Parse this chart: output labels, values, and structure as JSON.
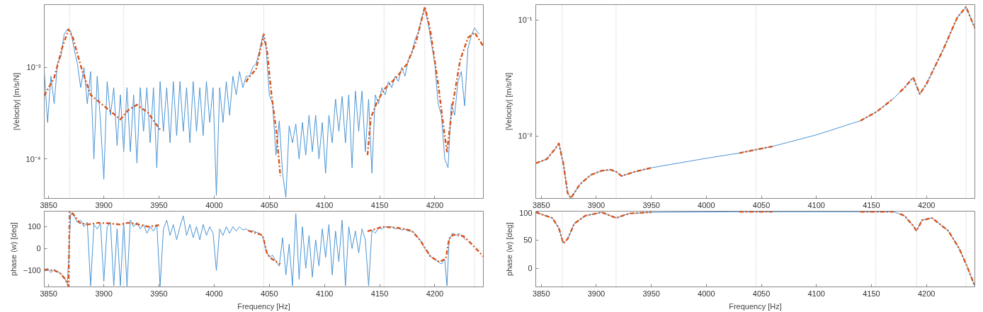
{
  "chart_data": [
    {
      "type": "line",
      "ylabel": "|Velocity| [m/s/N]",
      "log": "y",
      "grid": false,
      "xlim": [
        3846,
        4244
      ],
      "ylim": [
        3.7e-05,
        0.00484
      ],
      "xticks": [
        3850,
        3900,
        3950,
        4000,
        4050,
        4100,
        4150,
        4200
      ],
      "yticks": [
        {
          "value": 0.0001,
          "label": "10⁻⁴"
        },
        {
          "value": 0.001,
          "label": "10⁻³"
        }
      ],
      "ref_lines": [
        {
          "axis": "x",
          "value": 3869,
          "color": "#b4b4b4",
          "line_style": "dotted"
        },
        {
          "axis": "x",
          "value": 3918,
          "color": "#b4b4b4",
          "line_style": "dotted"
        },
        {
          "axis": "x",
          "value": 4045,
          "color": "#b4b4b4",
          "line_style": "dotted"
        },
        {
          "axis": "x",
          "value": 4154,
          "color": "#b4b4b4",
          "line_style": "dotted"
        },
        {
          "axis": "x",
          "value": 4191,
          "color": "#b4b4b4",
          "line_style": "dotted"
        },
        {
          "axis": "x",
          "value": 4236,
          "color": "#b4b4b4",
          "line_style": "dotted"
        }
      ],
      "series": [
        {
          "color": "#4a94d4",
          "line_style": "solid",
          "x": [
            3846,
            3849,
            3852,
            3855,
            3858,
            3861,
            3864,
            3867,
            3870,
            3873,
            3876,
            3879,
            3882,
            3885,
            3888,
            3891,
            3894,
            3897,
            3900,
            3903,
            3906,
            3909,
            3912,
            3915,
            3918,
            3921,
            3924,
            3927,
            3930,
            3933,
            3936,
            3939,
            3942,
            3945,
            3948,
            3951,
            3954,
            3957,
            3960,
            3963,
            3966,
            3969,
            3972,
            3975,
            3978,
            3981,
            3984,
            3987,
            3990,
            3993,
            3996,
            3999,
            4002,
            4005,
            4008,
            4011,
            4014,
            4017,
            4020,
            4023,
            4026,
            4029,
            4032,
            4035,
            4038,
            4041,
            4044,
            4047,
            4050,
            4053,
            4056,
            4059,
            4062,
            4065,
            4068,
            4071,
            4074,
            4077,
            4080,
            4083,
            4086,
            4089,
            4092,
            4095,
            4098,
            4101,
            4104,
            4107,
            4110,
            4113,
            4116,
            4119,
            4122,
            4125,
            4128,
            4131,
            4134,
            4137,
            4140,
            4143,
            4146,
            4149,
            4152,
            4155,
            4158,
            4161,
            4164,
            4167,
            4170,
            4173,
            4176,
            4179,
            4182,
            4185,
            4188,
            4191,
            4194,
            4197,
            4200,
            4203,
            4206,
            4209,
            4212,
            4215,
            4218,
            4221,
            4224,
            4227,
            4230,
            4233,
            4236,
            4240
          ],
          "values": [
            0.0009,
            0.00025,
            0.0008,
            0.0004,
            0.0011,
            0.0013,
            0.0023,
            0.0026,
            0.0025,
            0.0016,
            0.0011,
            0.0006,
            0.001,
            0.0004,
            0.0009,
            0.0001,
            0.0008,
            0.00025,
            6e-05,
            0.0007,
            0.0003,
            0.0006,
            0.00014,
            0.0005,
            0.00012,
            0.0006,
            0.00012,
            0.0005,
            9e-05,
            0.0006,
            0.0002,
            0.0006,
            0.00015,
            0.0006,
            8e-05,
            0.0007,
            0.0002,
            0.0006,
            0.00015,
            0.0007,
            0.00018,
            0.0007,
            0.0002,
            0.0006,
            0.00015,
            0.0007,
            0.0002,
            0.0006,
            0.00018,
            0.0007,
            0.00025,
            0.0006,
            4e-05,
            0.0006,
            0.00025,
            0.0007,
            0.0003,
            0.0008,
            0.0005,
            0.0009,
            0.0006,
            0.0008,
            0.0008,
            0.001,
            0.0011,
            0.0015,
            0.0022,
            0.0017,
            0.0005,
            0.0004,
            0.00011,
            0.00026,
            7e-05,
            3.8e-05,
            0.00023,
            0.00015,
            0.00024,
            0.0001,
            0.00025,
            0.00011,
            0.0003,
            0.00012,
            0.0003,
            0.0001,
            0.00025,
            7e-05,
            0.0003,
            0.00015,
            0.00045,
            0.0002,
            0.00048,
            0.00015,
            0.0005,
            8e-05,
            0.00055,
            0.0002,
            0.00055,
            0.00012,
            0.00045,
            7e-05,
            0.0005,
            0.0004,
            0.0006,
            0.0005,
            0.0007,
            0.0006,
            0.0008,
            0.0007,
            0.001,
            0.0008,
            0.0012,
            0.0014,
            0.002,
            0.0024,
            0.0034,
            0.0045,
            0.003,
            0.0018,
            0.0011,
            0.0004,
            0.0003,
            0.0001,
            8e-05,
            0.0004,
            0.0003,
            0.0007,
            0.0009,
            0.00038,
            0.0016,
            0.0022,
            0.0027,
            0.0023
          ]
        },
        {
          "color": "#d95319",
          "line_style": "dashed",
          "x": [
            3846,
            3855,
            3862,
            3868,
            3872,
            3880,
            3888,
            3900,
            3915,
            3922,
            3930,
            3940,
            3952,
            3990,
            4029,
            4031,
            4038,
            4045,
            4048,
            4052,
            4056,
            4060,
            4100,
            4139,
            4142,
            4148,
            4155,
            4165,
            4175,
            4183,
            4191,
            4196,
            4203,
            4208,
            4211,
            4216,
            4223,
            4230,
            4236,
            4244
          ],
          "values": [
            0.00049,
            0.00077,
            0.0016,
            0.0026,
            0.0021,
            0.00095,
            0.0005,
            0.00038,
            0.00027,
            0.00034,
            0.00039,
            0.00032,
            0.0002,
            null,
            0.00069,
            0.00077,
            0.00095,
            0.0023,
            0.0015,
            0.0005,
            0.00022,
            6.5e-05,
            null,
            0.00011,
            0.00028,
            0.00043,
            0.00059,
            0.00077,
            0.0011,
            0.0019,
            0.0046,
            0.0025,
            0.00066,
            0.00022,
            0.00012,
            0.00038,
            0.0012,
            0.0021,
            0.0024,
            0.0017
          ]
        }
      ]
    },
    {
      "type": "line",
      "ylabel": "|Velocity| [m/s/N]",
      "log": "y",
      "grid": false,
      "xlim": [
        3845,
        4244
      ],
      "ylim": [
        0.00288,
        0.136
      ],
      "xticks": [
        3850,
        3900,
        3950,
        4000,
        4050,
        4100,
        4150,
        4200
      ],
      "yticks": [
        {
          "value": 0.01,
          "label": "10⁻²"
        },
        {
          "value": 0.1,
          "label": "10⁻¹"
        }
      ],
      "ref_lines": [
        {
          "axis": "x",
          "value": 3869,
          "color": "#b4b4b4",
          "line_style": "dotted"
        },
        {
          "axis": "x",
          "value": 3918,
          "color": "#b4b4b4",
          "line_style": "dotted"
        },
        {
          "axis": "x",
          "value": 4045,
          "color": "#b4b4b4",
          "line_style": "dotted"
        },
        {
          "axis": "x",
          "value": 4154,
          "color": "#b4b4b4",
          "line_style": "dotted"
        },
        {
          "axis": "x",
          "value": 4191,
          "color": "#b4b4b4",
          "line_style": "dotted"
        },
        {
          "axis": "x",
          "value": 4236,
          "color": "#b4b4b4",
          "line_style": "dotted"
        }
      ],
      "series": [
        {
          "color": "#4a94d4",
          "line_style": "solid",
          "x": [
            3845,
            3855,
            3862,
            3866,
            3870,
            3874,
            3877,
            3885,
            3895,
            3905,
            3913,
            3918,
            3923,
            3935,
            3950,
            4000,
            4030,
            4045,
            4060,
            4100,
            4140,
            4155,
            4170,
            4180,
            4188,
            4191,
            4194,
            4200,
            4215,
            4228,
            4236,
            4244
          ],
          "values": [
            0.0058,
            0.0063,
            0.0076,
            0.0086,
            0.0058,
            0.0032,
            0.0029,
            0.0038,
            0.0046,
            0.005,
            0.0051,
            0.0049,
            0.0045,
            0.0049,
            0.0053,
            0.0064,
            0.0071,
            0.0076,
            0.0081,
            0.0102,
            0.0135,
            0.0162,
            0.021,
            0.026,
            0.032,
            0.027,
            0.023,
            0.028,
            0.055,
            0.105,
            0.13,
            0.085
          ]
        },
        {
          "color": "#d95319",
          "line_style": "dashed",
          "x": [
            3845,
            3855,
            3862,
            3866,
            3870,
            3874,
            3877,
            3885,
            3895,
            3905,
            3913,
            3918,
            3923,
            3935,
            3950,
            4000,
            4030,
            4045,
            4060,
            4100,
            4140,
            4155,
            4170,
            4173,
            4176,
            4180,
            4188,
            4191,
            4194,
            4200,
            4215,
            4228,
            4236,
            4244
          ],
          "values": [
            0.0058,
            0.0063,
            0.0076,
            0.0086,
            0.0058,
            0.0032,
            0.0029,
            0.0038,
            0.0046,
            0.005,
            0.0051,
            0.0049,
            0.0045,
            0.0049,
            0.0053,
            null,
            0.0071,
            0.0076,
            0.0081,
            null,
            0.0135,
            0.0162,
            0.021,
            null,
            0.024,
            0.026,
            0.032,
            0.027,
            0.023,
            0.028,
            0.055,
            0.105,
            0.13,
            0.085
          ]
        }
      ]
    },
    {
      "type": "line",
      "ylabel": "phase (w) [deg]",
      "xlabel": "Frequency [Hz]",
      "grid": false,
      "xlim": [
        3846,
        4244
      ],
      "ylim": [
        -175,
        171
      ],
      "xticks": [
        3850,
        3900,
        3950,
        4000,
        4050,
        4100,
        4150,
        4200
      ],
      "yticks": [
        -100,
        0,
        100
      ],
      "ref_lines": [
        {
          "axis": "x",
          "value": 3869,
          "color": "#b4b4b4",
          "line_style": "dotted"
        },
        {
          "axis": "x",
          "value": 3918,
          "color": "#b4b4b4",
          "line_style": "dotted"
        },
        {
          "axis": "x",
          "value": 4045,
          "color": "#b4b4b4",
          "line_style": "dotted"
        },
        {
          "axis": "x",
          "value": 4154,
          "color": "#b4b4b4",
          "line_style": "dotted"
        },
        {
          "axis": "x",
          "value": 4191,
          "color": "#b4b4b4",
          "line_style": "dotted"
        },
        {
          "axis": "x",
          "value": 4236,
          "color": "#b4b4b4",
          "line_style": "dotted"
        }
      ],
      "series": [
        {
          "color": "#4a94d4",
          "line_style": "solid",
          "x": [
            3846,
            3849,
            3852,
            3855,
            3858,
            3861,
            3864,
            3867,
            3870,
            3873,
            3876,
            3879,
            3882,
            3885,
            3888,
            3891,
            3894,
            3897,
            3900,
            3903,
            3906,
            3909,
            3912,
            3915,
            3918,
            3921,
            3924,
            3927,
            3930,
            3933,
            3936,
            3939,
            3942,
            3945,
            3948,
            3951,
            3954,
            3957,
            3960,
            3963,
            3966,
            3969,
            3972,
            3975,
            3978,
            3981,
            3984,
            3987,
            3990,
            3993,
            3996,
            3999,
            4002,
            4005,
            4008,
            4011,
            4014,
            4017,
            4020,
            4023,
            4026,
            4029,
            4032,
            4035,
            4038,
            4041,
            4044,
            4047,
            4050,
            4053,
            4056,
            4059,
            4062,
            4065,
            4068,
            4071,
            4074,
            4077,
            4080,
            4083,
            4086,
            4089,
            4092,
            4095,
            4098,
            4101,
            4104,
            4107,
            4110,
            4113,
            4116,
            4119,
            4122,
            4125,
            4128,
            4131,
            4134,
            4137,
            4140,
            4143,
            4146,
            4149,
            4152,
            4155,
            4158,
            4161,
            4164,
            4167,
            4170,
            4173,
            4176,
            4179,
            4182,
            4185,
            4188,
            4191,
            4194,
            4197,
            4200,
            4203,
            4206,
            4209,
            4211,
            4213,
            4216,
            4219,
            4222,
            4225,
            4228
          ],
          "values": [
            -100,
            -90,
            -110,
            -95,
            -105,
            -115,
            -130,
            -160,
            160,
            150,
            120,
            130,
            100,
            120,
            -170,
            110,
            90,
            115,
            -150,
            100,
            120,
            -170,
            90,
            -170,
            120,
            -172,
            130,
            100,
            120,
            90,
            110,
            70,
            100,
            80,
            110,
            -172,
            90,
            130,
            60,
            110,
            40,
            100,
            150,
            60,
            110,
            50,
            100,
            40,
            110,
            60,
            100,
            70,
            -100,
            90,
            60,
            100,
            70,
            100,
            80,
            100,
            85,
            90,
            80,
            82,
            75,
            70,
            55,
            -10,
            -40,
            -30,
            -60,
            -80,
            50,
            -120,
            20,
            -170,
            160,
            -140,
            100,
            -90,
            60,
            -130,
            40,
            -80,
            90,
            -40,
            110,
            -120,
            80,
            -60,
            130,
            -170,
            100,
            0,
            80,
            -20,
            90,
            40,
            -170,
            85,
            70,
            95,
            90,
            100,
            95,
            100,
            90,
            95,
            85,
            90,
            80,
            80,
            70,
            50,
            30,
            0,
            -20,
            -40,
            -50,
            -60,
            -70,
            -50,
            -170,
            40,
            70,
            60,
            70,
            55,
            40
          ]
        },
        {
          "color": "#d95319",
          "line_style": "dashed",
          "x": [
            3846,
            3855,
            3860,
            3865,
            3868,
            3869,
            3872,
            3878,
            3885,
            3895,
            3905,
            3915,
            3922,
            3930,
            3940,
            3950,
            3990,
            4031,
            4044,
            4048,
            4052,
            4060,
            4100,
            4139,
            4153,
            4166,
            4179,
            4187,
            4196,
            4204,
            4210,
            4213,
            4217,
            4226,
            4234,
            4244
          ],
          "values": [
            -96,
            -100,
            -110,
            -140,
            -172,
            168,
            160,
            118,
            110,
            118,
            115,
            110,
            118,
            112,
            100,
            107,
            null,
            82,
            61,
            -25,
            -46,
            -71,
            null,
            79,
            100,
            95,
            82,
            36,
            -36,
            -61,
            -46,
            46,
            64,
            57,
            18,
            -36
          ]
        }
      ]
    },
    {
      "type": "line",
      "ylabel": "phase (w) [deg]",
      "xlabel": "Frequency [Hz]",
      "grid": false,
      "xlim": [
        3845,
        4244
      ],
      "ylim": [
        -33,
        101
      ],
      "xticks": [
        3850,
        3900,
        3950,
        4000,
        4050,
        4100,
        4150,
        4200
      ],
      "yticks": [
        0,
        50,
        100
      ],
      "ref_lines": [
        {
          "axis": "x",
          "value": 3869,
          "color": "#b4b4b4",
          "line_style": "dotted"
        },
        {
          "axis": "x",
          "value": 3918,
          "color": "#b4b4b4",
          "line_style": "dotted"
        },
        {
          "axis": "x",
          "value": 4045,
          "color": "#b4b4b4",
          "line_style": "dotted"
        },
        {
          "axis": "x",
          "value": 4154,
          "color": "#b4b4b4",
          "line_style": "dotted"
        },
        {
          "axis": "x",
          "value": 4191,
          "color": "#b4b4b4",
          "line_style": "dotted"
        },
        {
          "axis": "x",
          "value": 4236,
          "color": "#b4b4b4",
          "line_style": "dotted"
        }
      ],
      "series": [
        {
          "color": "#4a94d4",
          "line_style": "solid",
          "x": [
            3845,
            3860,
            3866,
            3870,
            3874,
            3880,
            3890,
            3905,
            3918,
            3930,
            3950,
            4030,
            4045,
            4060,
            4100,
            4140,
            4155,
            4170,
            4180,
            4188,
            4191,
            4196,
            4205,
            4220,
            4230,
            4237,
            4244
          ],
          "values": [
            99,
            89,
            71,
            44,
            52,
            79,
            93,
            99,
            89,
            97,
            99,
            100,
            100,
            100,
            100,
            100,
            100,
            100,
            93,
            75,
            66,
            85,
            89,
            66,
            34,
            3,
            -32
          ]
        },
        {
          "color": "#d95319",
          "line_style": "dashed",
          "x": [
            3845,
            3860,
            3866,
            3870,
            3874,
            3880,
            3890,
            3905,
            3918,
            3930,
            3950,
            3990,
            4030,
            4045,
            4060,
            4100,
            4140,
            4155,
            4170,
            4173,
            4176,
            4180,
            4188,
            4191,
            4196,
            4205,
            4220,
            4230,
            4237,
            4244
          ],
          "values": [
            99,
            89,
            71,
            44,
            52,
            79,
            93,
            99,
            89,
            97,
            99,
            null,
            100,
            100,
            100,
            null,
            100,
            100,
            100,
            null,
            96,
            93,
            75,
            66,
            85,
            89,
            66,
            34,
            3,
            -32
          ]
        }
      ]
    }
  ]
}
